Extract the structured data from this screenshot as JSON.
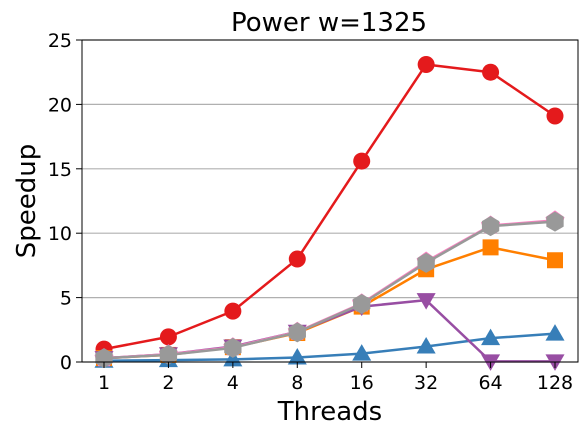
{
  "chart_data": {
    "type": "line",
    "title": "Power w=1325",
    "xlabel": "Threads",
    "ylabel": "Speedup",
    "categories": [
      "1",
      "2",
      "4",
      "8",
      "16",
      "32",
      "64",
      "128"
    ],
    "ylim": [
      0,
      25
    ],
    "yticks": [
      0,
      5,
      10,
      15,
      20,
      25
    ],
    "grid": "horizontal",
    "series": [
      {
        "color": "#e41a1c",
        "marker": "circle",
        "values": [
          1.0,
          1.95,
          3.95,
          8.0,
          15.6,
          23.1,
          22.5,
          19.1
        ]
      },
      {
        "color": "#377eb8",
        "marker": "triangle-up",
        "values": [
          0.1,
          0.15,
          0.2,
          0.35,
          0.65,
          1.2,
          1.85,
          2.2
        ]
      },
      {
        "color": "#ff7f00",
        "marker": "square",
        "values": [
          0.3,
          0.55,
          1.15,
          2.25,
          4.3,
          7.2,
          8.9,
          7.9
        ]
      },
      {
        "color": "#984ea3",
        "marker": "triangle-down",
        "values": [
          0.3,
          0.6,
          1.2,
          2.35,
          4.3,
          4.8,
          0.05,
          0.05
        ]
      },
      {
        "color": "#f781bf",
        "marker": "pentagon",
        "values": [
          0.3,
          0.6,
          1.15,
          2.35,
          4.55,
          7.8,
          10.6,
          11.0
        ]
      },
      {
        "color": "#999999",
        "marker": "hexagon",
        "values": [
          0.3,
          0.55,
          1.1,
          2.3,
          4.5,
          7.7,
          10.55,
          10.9
        ]
      }
    ]
  }
}
